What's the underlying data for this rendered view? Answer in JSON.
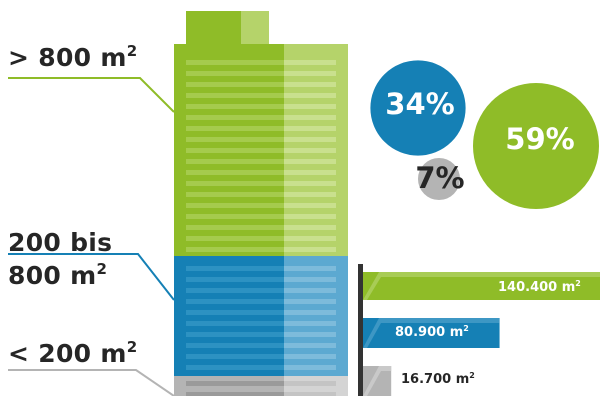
{
  "chart_data": [
    {
      "type": "bar",
      "orientation": "horizontal",
      "categories": [
        "> 800 m²",
        "200 bis 800 m²",
        "< 200 m²"
      ],
      "values": [
        140400,
        80900,
        16700
      ],
      "value_labels": [
        "140.400",
        "80.900",
        "16.700"
      ],
      "unit": "m",
      "unit_sup": "2"
    },
    {
      "type": "pie",
      "style": "bubbles",
      "categories": [
        "> 800 m²",
        "200 bis 800 m²",
        "< 200 m²"
      ],
      "values": [
        59,
        34,
        7
      ],
      "value_labels": [
        "59%",
        "34%",
        "7%"
      ]
    }
  ],
  "labels": {
    "large": {
      "text": "> 800 m",
      "sup": "2"
    },
    "medium_line1": "200 bis",
    "medium_line2": {
      "text": "800 m",
      "sup": "2"
    },
    "small": {
      "text": "< 200 m",
      "sup": "2"
    }
  },
  "colors": {
    "large": "#8fbc28",
    "large_light": "#b5d36a",
    "medium": "#1580b5",
    "medium_light": "#5ca9d1",
    "small": "#b4b4b4",
    "small_light": "#d4d4d4",
    "axis": "#333333",
    "text": "#262626"
  }
}
